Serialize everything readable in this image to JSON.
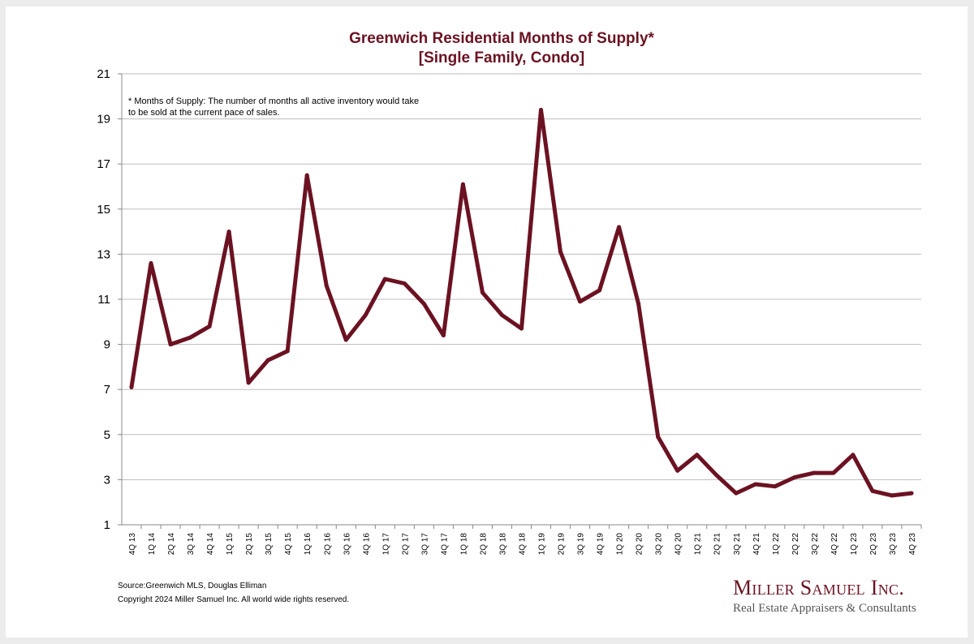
{
  "colors": {
    "line": "#6b1222",
    "grid": "#bdbdbd",
    "title": "#6b1222"
  },
  "chart_data": {
    "type": "line",
    "title": "Greenwich Residential Months of Supply*",
    "subtitle": "[Single Family, Condo]",
    "xlabel": "",
    "ylabel": "",
    "ylim": [
      1,
      21
    ],
    "yticks": [
      1,
      3,
      5,
      7,
      9,
      11,
      13,
      15,
      17,
      19,
      21
    ],
    "grid": true,
    "annotation": "* Months of Supply: The number of months all active inventory would take to be sold at the current pace of sales.",
    "categories": [
      "4Q 13",
      "1Q 14",
      "2Q 14",
      "3Q 14",
      "4Q 14",
      "1Q 15",
      "2Q 15",
      "3Q 15",
      "4Q 15",
      "1Q 16",
      "2Q 16",
      "3Q 16",
      "4Q 16",
      "1Q 17",
      "2Q 17",
      "3Q 17",
      "4Q 17",
      "1Q 18",
      "2Q 18",
      "3Q 18",
      "4Q 18",
      "1Q 19",
      "2Q 19",
      "3Q 19",
      "4Q 19",
      "1Q 20",
      "2Q 20",
      "3Q 20",
      "4Q 20",
      "1Q 21",
      "2Q 21",
      "3Q 21",
      "4Q 21",
      "1Q 22",
      "2Q 22",
      "3Q 22",
      "4Q 22",
      "1Q 23",
      "2Q 23",
      "3Q 23",
      "4Q 23"
    ],
    "series": [
      {
        "name": "Months of Supply",
        "values": [
          7.1,
          12.6,
          9.0,
          9.3,
          9.8,
          14.0,
          7.3,
          8.3,
          8.7,
          16.5,
          11.6,
          9.2,
          10.3,
          11.9,
          11.7,
          10.8,
          9.4,
          16.1,
          11.3,
          10.3,
          9.7,
          19.4,
          13.1,
          10.9,
          11.4,
          14.2,
          10.8,
          4.9,
          3.4,
          4.1,
          3.2,
          2.4,
          2.8,
          2.7,
          3.1,
          3.3,
          3.3,
          4.1,
          2.5,
          2.3,
          2.4
        ]
      }
    ]
  },
  "footer": {
    "source": "Source:Greenwich MLS, Douglas Elliman",
    "copyright": "Copyright 2024 Miller Samuel Inc.  All world wide rights reserved."
  },
  "logo": {
    "name": "Miller Samuel Inc.",
    "tagline": "Real Estate Appraisers & Consultants"
  }
}
